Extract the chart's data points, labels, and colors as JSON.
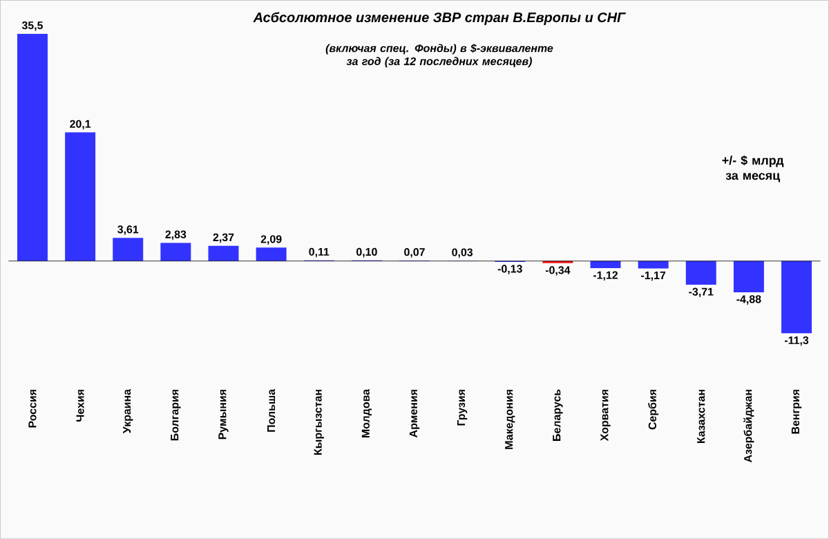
{
  "chart_data": {
    "type": "bar",
    "title": "Асбсолютное изменение ЗВР стран В.Европы  и СНГ",
    "subtitle": "(включая спец. Фонды) в $-эквиваленте за год (за 12 последних месяцев)",
    "annotations": [
      "+/- $ млрд за месяц"
    ],
    "categories": [
      "Россия",
      "Чехия",
      "Украина",
      "Болгария",
      "Румыния",
      "Польша",
      "Кыргызстан",
      "Молдова",
      "Армения",
      "Грузия",
      "Македония",
      "Беларусь",
      "Хорватия",
      "Сербия",
      "Казахстан",
      "Азербайджан",
      "Венгрия"
    ],
    "values": [
      35.5,
      20.1,
      3.61,
      2.83,
      2.37,
      2.09,
      0.11,
      0.1,
      0.07,
      0.03,
      -0.13,
      -0.34,
      -1.12,
      -1.17,
      -3.71,
      -4.88,
      -11.3
    ],
    "value_labels": [
      "35,5",
      "20,1",
      "3,61",
      "2,83",
      "2,37",
      "2,09",
      "0,11",
      "0,10",
      "0,07",
      "0,03",
      "-0,13",
      "-0,34",
      "-1,12",
      "-1,17",
      "-3,71",
      "-4,88",
      "-11,3"
    ],
    "colors": [
      "#3333ff",
      "#3333ff",
      "#3333ff",
      "#3333ff",
      "#3333ff",
      "#3333ff",
      "#3333ff",
      "#3333ff",
      "#3333ff",
      "#3333ff",
      "#3333ff",
      "#ee1111",
      "#3333ff",
      "#3333ff",
      "#3333ff",
      "#3333ff",
      "#3333ff"
    ]
  }
}
